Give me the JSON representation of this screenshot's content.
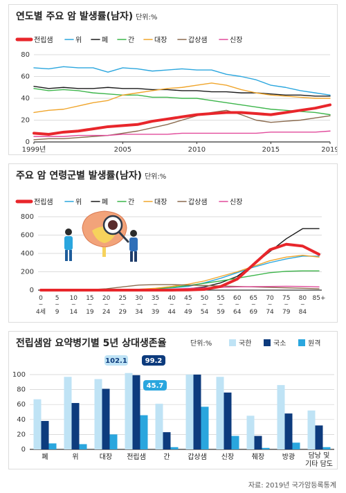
{
  "source": "자료: 2019년 국가암등록통계",
  "colors": {
    "prostate": "#e8262b",
    "stomach": "#2aa6de",
    "lung": "#1a1a1a",
    "liver": "#3cb54a",
    "colorectal": "#f0a52b",
    "thyroid": "#8a6a4e",
    "kidney": "#e14a9b",
    "domestic": "#bfe3f5",
    "regional": "#0d3b7d",
    "distant": "#2aa6de"
  },
  "chart_data": [
    {
      "type": "line",
      "title": "연도별 주요 암 발생률(남자)",
      "unit": "단위:%",
      "x": [
        1999,
        2000,
        2001,
        2002,
        2003,
        2004,
        2005,
        2006,
        2007,
        2008,
        2009,
        2010,
        2011,
        2012,
        2013,
        2014,
        2015,
        2016,
        2017,
        2018,
        2019
      ],
      "x_tick_labels": [
        "1999년",
        "2005",
        "2010",
        "2015",
        "2019"
      ],
      "x_tick_values": [
        1999,
        2005,
        2010,
        2015,
        2019
      ],
      "ylim": [
        0,
        80
      ],
      "y_ticks": [
        0,
        20,
        40,
        60,
        80
      ],
      "series": [
        {
          "name": "전립샘",
          "key": "prostate",
          "values": [
            8,
            7,
            9,
            10,
            12,
            14,
            15,
            16,
            19,
            21,
            23,
            25,
            26,
            27,
            27,
            26,
            25,
            27,
            29,
            31,
            34
          ]
        },
        {
          "name": "위",
          "key": "stomach",
          "values": [
            68,
            67,
            69,
            68,
            68,
            64,
            68,
            67,
            65,
            66,
            67,
            66,
            66,
            62,
            60,
            57,
            52,
            50,
            47,
            45,
            43
          ]
        },
        {
          "name": "폐",
          "key": "lung",
          "values": [
            51,
            49,
            50,
            49,
            49,
            50,
            49,
            49,
            48,
            48,
            47,
            47,
            46,
            46,
            45,
            45,
            44,
            43,
            43,
            42,
            42
          ]
        },
        {
          "name": "간",
          "key": "liver",
          "values": [
            49,
            47,
            48,
            47,
            45,
            44,
            43,
            43,
            41,
            41,
            40,
            40,
            38,
            36,
            34,
            32,
            30,
            29,
            28,
            27,
            25
          ]
        },
        {
          "name": "대장",
          "key": "colorectal",
          "values": [
            27,
            29,
            30,
            33,
            36,
            38,
            43,
            45,
            47,
            49,
            50,
            52,
            54,
            52,
            48,
            45,
            43,
            42,
            41,
            40,
            40
          ]
        },
        {
          "name": "갑상샘",
          "key": "thyroid",
          "values": [
            2,
            3,
            3,
            4,
            5,
            6,
            8,
            10,
            13,
            16,
            20,
            24,
            27,
            29,
            25,
            20,
            18,
            19,
            20,
            22,
            24
          ]
        },
        {
          "name": "신장",
          "key": "kidney",
          "values": [
            5,
            5,
            5,
            6,
            6,
            6,
            7,
            7,
            7,
            7,
            8,
            8,
            8,
            8,
            8,
            8,
            9,
            9,
            9,
            9,
            10
          ]
        }
      ]
    },
    {
      "type": "line",
      "title": "주요 암 연령군별 발생률(남자)",
      "unit": "단위:%",
      "categories": [
        "0~4세",
        "5~9",
        "10~14",
        "15~19",
        "20~24",
        "25~29",
        "30~34",
        "35~39",
        "40~44",
        "45~49",
        "50~54",
        "55~59",
        "60~64",
        "65~69",
        "70~74",
        "75~79",
        "80~84",
        "85+"
      ],
      "tick_top": [
        "0",
        "5",
        "10",
        "15",
        "20",
        "25",
        "30",
        "35",
        "40",
        "45",
        "50",
        "55",
        "60",
        "65",
        "70",
        "75",
        "80",
        "85+"
      ],
      "tick_bottom": [
        "4세",
        "9",
        "14",
        "19",
        "24",
        "29",
        "34",
        "39",
        "44",
        "49",
        "54",
        "59",
        "64",
        "69",
        "74",
        "79",
        "84",
        ""
      ],
      "ylim": [
        0,
        800
      ],
      "y_ticks": [
        0,
        200,
        400,
        600,
        800
      ],
      "series": [
        {
          "name": "전립샘",
          "key": "prostate",
          "values": [
            0,
            0,
            0,
            0,
            0,
            0,
            0,
            0,
            0,
            2,
            8,
            40,
            120,
            280,
            440,
            500,
            480,
            390
          ]
        },
        {
          "name": "위",
          "key": "stomach",
          "values": [
            0,
            0,
            0,
            0,
            2,
            5,
            10,
            15,
            25,
            40,
            80,
            130,
            190,
            250,
            300,
            340,
            370,
            370
          ]
        },
        {
          "name": "폐",
          "key": "lung",
          "values": [
            0,
            0,
            0,
            0,
            0,
            1,
            2,
            4,
            8,
            15,
            35,
            80,
            150,
            280,
            420,
            560,
            670,
            670
          ]
        },
        {
          "name": "간",
          "key": "liver",
          "values": [
            0,
            0,
            0,
            0,
            1,
            3,
            8,
            15,
            30,
            50,
            75,
            100,
            130,
            160,
            190,
            205,
            210,
            210
          ]
        },
        {
          "name": "대장",
          "key": "colorectal",
          "values": [
            0,
            0,
            0,
            0,
            2,
            5,
            10,
            20,
            40,
            65,
            100,
            150,
            200,
            260,
            320,
            360,
            380,
            360
          ]
        },
        {
          "name": "갑상샘",
          "key": "thyroid",
          "values": [
            0,
            0,
            0,
            5,
            15,
            35,
            55,
            60,
            60,
            55,
            50,
            45,
            40,
            35,
            30,
            25,
            20,
            15
          ]
        },
        {
          "name": "신장",
          "key": "kidney",
          "values": [
            1,
            1,
            1,
            1,
            2,
            3,
            5,
            8,
            12,
            18,
            25,
            30,
            35,
            38,
            40,
            42,
            40,
            35
          ]
        }
      ]
    },
    {
      "type": "bar",
      "title": "전립샘암 요약병기별 5년 상대생존율",
      "unit": "단위:%",
      "categories": [
        "폐",
        "위",
        "대장",
        "전립샘",
        "간",
        "갑상샘",
        "신장",
        "췌장",
        "방광",
        "담낭 및 기타 담도"
      ],
      "ylim": [
        0,
        100
      ],
      "y_ticks": [
        0,
        20,
        40,
        60,
        80,
        100
      ],
      "series": [
        {
          "name": "국한",
          "key": "domestic",
          "values": [
            67,
            97,
            94,
            102.1,
            61,
            100,
            97,
            45,
            86,
            52
          ]
        },
        {
          "name": "국소",
          "key": "regional",
          "values": [
            38,
            62,
            81,
            99.2,
            23,
            100,
            76,
            18,
            48,
            32
          ]
        },
        {
          "name": "원격",
          "key": "distant",
          "values": [
            8,
            7,
            20,
            45.7,
            3,
            57,
            18,
            2,
            9,
            3
          ]
        }
      ],
      "annotations": [
        {
          "category": "전립샘",
          "series": "국한",
          "label": "102.1"
        },
        {
          "category": "전립샘",
          "series": "국소",
          "label": "99.2"
        },
        {
          "category": "전립샘",
          "series": "원격",
          "label": "45.7"
        }
      ]
    }
  ]
}
